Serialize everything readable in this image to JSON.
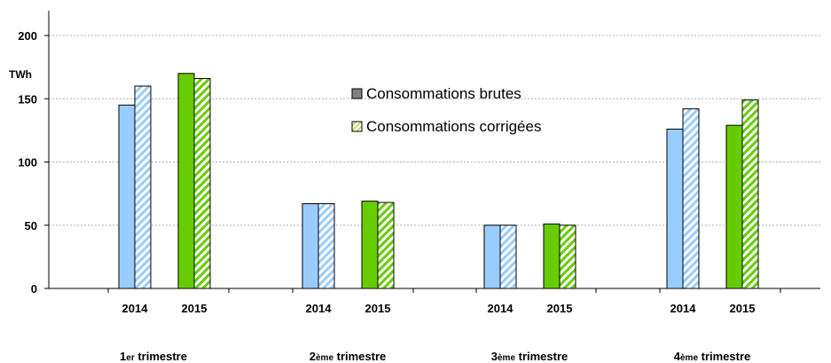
{
  "chart_data": {
    "type": "bar",
    "ylabel": "TWh",
    "ylim": [
      0,
      200
    ],
    "yticks": [
      0,
      50,
      100,
      150,
      200
    ],
    "grid": true,
    "legend_placement": "center",
    "groups": [
      {
        "label_main": "1",
        "label_sup": "er",
        "label_rest": " trimestre"
      },
      {
        "label_main": "2",
        "label_sup": "ème",
        "label_rest": " trimestre"
      },
      {
        "label_main": "3",
        "label_sup": "ème",
        "label_rest": " trimestre"
      },
      {
        "label_main": "4",
        "label_sup": "ème",
        "label_rest": " trimestre"
      }
    ],
    "years": [
      "2014",
      "2015"
    ],
    "series": [
      {
        "name": "Consommations brutes",
        "pattern": "solid",
        "values": {
          "2014": [
            145,
            67,
            50,
            126
          ],
          "2015": [
            170,
            69,
            51,
            129
          ]
        }
      },
      {
        "name": "Consommations corrigées",
        "pattern": "hatched",
        "values": {
          "2014": [
            160,
            67,
            50,
            142
          ],
          "2015": [
            166,
            68,
            50,
            149
          ]
        }
      }
    ],
    "colors": {
      "2014": "#99ccff",
      "2015": "#66cc00",
      "legend_solid": "#808080",
      "legend_hatch": "#c8d96b",
      "grid": "#b0b0b0",
      "axis": "#000000"
    }
  }
}
